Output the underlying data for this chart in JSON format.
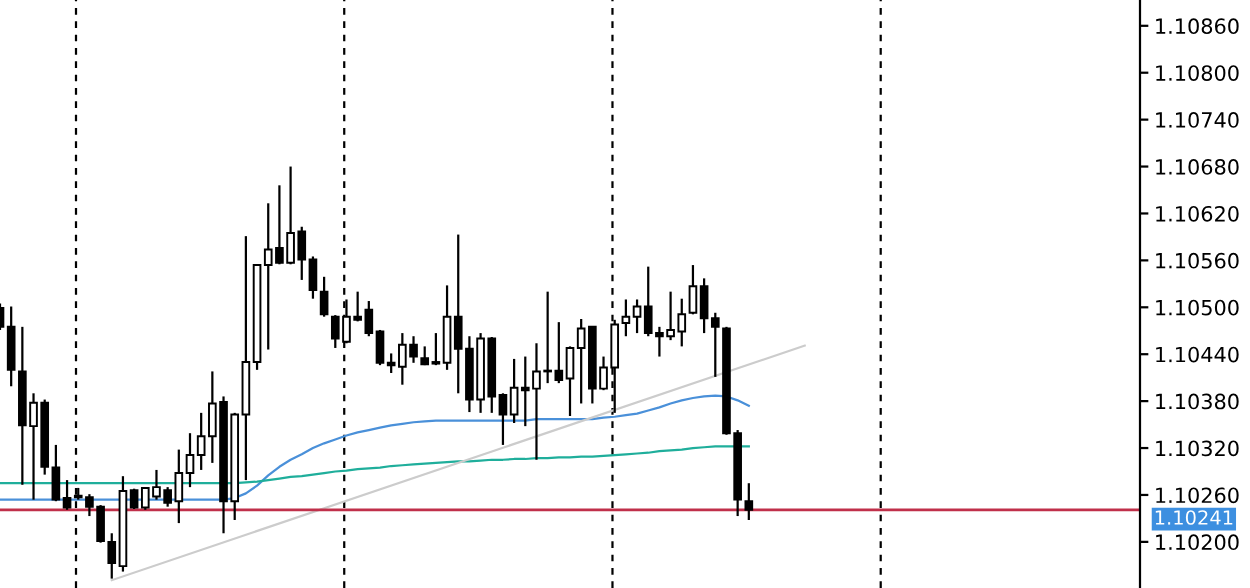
{
  "chart_data": {
    "type": "candlestick",
    "categories": [
      null,
      null,
      null,
      null,
      null,
      null,
      null,
      null,
      null,
      null,
      null,
      null,
      null,
      null,
      null,
      null,
      null,
      null,
      null,
      null,
      null,
      null,
      null,
      null,
      null,
      null,
      null,
      null,
      null,
      null,
      null,
      null,
      null,
      null,
      null,
      null,
      null,
      null,
      null,
      null,
      null,
      null,
      null,
      null,
      null,
      null,
      null,
      null,
      null,
      null,
      null,
      null,
      null,
      null,
      null,
      null,
      null,
      null,
      null,
      null,
      null,
      null,
      null,
      null,
      null,
      null,
      null,
      null,
      null,
      null,
      null,
      null,
      null,
      null,
      null,
      null,
      null,
      null,
      null,
      null,
      null,
      null,
      null,
      null,
      null,
      null,
      null,
      null,
      null,
      null,
      null,
      null,
      null,
      null,
      null,
      null,
      null,
      null,
      null,
      null,
      null,
      null
    ],
    "ohlc": [
      [
        1.10499,
        1.10505,
        1.10471,
        1.10475
      ],
      [
        1.10475,
        1.10501,
        1.10399,
        1.1042
      ],
      [
        1.10418,
        1.10475,
        1.10273,
        1.10349
      ],
      [
        1.10348,
        1.1039,
        1.10254,
        1.10378
      ],
      [
        1.10378,
        1.10382,
        1.10286,
        1.10296
      ],
      [
        1.10295,
        1.10324,
        1.10252,
        1.10254
      ],
      [
        1.10256,
        1.10279,
        1.10241,
        1.10244
      ],
      [
        1.10257,
        1.10269,
        1.10254,
        1.10259
      ],
      [
        1.10257,
        1.10261,
        1.10233,
        1.10245
      ],
      [
        1.10245,
        1.10247,
        1.10199,
        1.10201
      ],
      [
        1.102,
        1.10211,
        1.10153,
        1.10173
      ],
      [
        1.10169,
        1.10284,
        1.10162,
        1.10265
      ],
      [
        1.10266,
        1.10268,
        1.10242,
        1.10244
      ],
      [
        1.10244,
        1.1027,
        1.10241,
        1.10269
      ],
      [
        1.10258,
        1.10292,
        1.10254,
        1.1027
      ],
      [
        1.10266,
        1.1027,
        1.10245,
        1.1025
      ],
      [
        1.10252,
        1.10318,
        1.10224,
        1.10288
      ],
      [
        1.10288,
        1.10339,
        1.1027,
        1.10311
      ],
      [
        1.10311,
        1.10365,
        1.10292,
        1.10335
      ],
      [
        1.10335,
        1.10418,
        1.10301,
        1.10377
      ],
      [
        1.10379,
        1.10386,
        1.10211,
        1.10252
      ],
      [
        1.10252,
        1.10365,
        1.10228,
        1.10363
      ],
      [
        1.10363,
        1.10591,
        1.10279,
        1.1043
      ],
      [
        1.1043,
        1.10554,
        1.1042,
        1.10554
      ],
      [
        1.10554,
        1.10633,
        1.10446,
        1.10574
      ],
      [
        1.10576,
        1.10656,
        1.10555,
        1.10557
      ],
      [
        1.10557,
        1.1068,
        1.10555,
        1.10595
      ],
      [
        1.10597,
        1.10603,
        1.10535,
        1.10561
      ],
      [
        1.10561,
        1.10565,
        1.10511,
        1.10522
      ],
      [
        1.1052,
        1.10539,
        1.10488,
        1.10491
      ],
      [
        1.10488,
        1.1049,
        1.10448,
        1.1046
      ],
      [
        1.10456,
        1.1051,
        1.10454,
        1.10488
      ],
      [
        1.10488,
        1.1052,
        1.10482,
        1.10484
      ],
      [
        1.10497,
        1.10508,
        1.10463,
        1.10467
      ],
      [
        1.10469,
        1.10471,
        1.10426,
        1.10429
      ],
      [
        1.10429,
        1.10441,
        1.10416,
        1.10426
      ],
      [
        1.10424,
        1.10467,
        1.10401,
        1.10452
      ],
      [
        1.10452,
        1.10463,
        1.10429,
        1.10437
      ],
      [
        1.10435,
        1.1045,
        1.10426,
        1.10427
      ],
      [
        1.10428,
        1.10467,
        1.10426,
        1.1043
      ],
      [
        1.10429,
        1.10528,
        1.1042,
        1.10488
      ],
      [
        1.10488,
        1.10593,
        1.1039,
        1.10447
      ],
      [
        1.10447,
        1.10463,
        1.10366,
        1.10382
      ],
      [
        1.10382,
        1.10467,
        1.10365,
        1.1046
      ],
      [
        1.1046,
        1.10462,
        1.10365,
        1.10386
      ],
      [
        1.10388,
        1.1039,
        1.10324,
        1.10363
      ],
      [
        1.10363,
        1.10434,
        1.10352,
        1.10397
      ],
      [
        1.10397,
        1.10437,
        1.10348,
        1.10394
      ],
      [
        1.10396,
        1.10454,
        1.10305,
        1.10418
      ],
      [
        1.10418,
        1.1052,
        1.10403,
        1.10419
      ],
      [
        1.10419,
        1.10481,
        1.10403,
        1.10407
      ],
      [
        1.10409,
        1.1045,
        1.10361,
        1.10448
      ],
      [
        1.10448,
        1.10485,
        1.10377,
        1.10473
      ],
      [
        1.10475,
        1.10475,
        1.10377,
        1.10396
      ],
      [
        1.10396,
        1.10437,
        1.10394,
        1.10423
      ],
      [
        1.10423,
        1.10484,
        1.10365,
        1.10478
      ],
      [
        1.1048,
        1.1051,
        1.10463,
        1.10488
      ],
      [
        1.10488,
        1.1051,
        1.10467,
        1.10501
      ],
      [
        1.10501,
        1.10552,
        1.10463,
        1.10467
      ],
      [
        1.10467,
        1.10475,
        1.10437,
        1.10463
      ],
      [
        1.10463,
        1.1052,
        1.10458,
        1.10471
      ],
      [
        1.10469,
        1.10511,
        1.1045,
        1.10491
      ],
      [
        1.10493,
        1.10554,
        1.10491,
        1.10527
      ],
      [
        1.10527,
        1.10537,
        1.10467,
        1.10486
      ],
      [
        1.10486,
        1.10493,
        1.10411,
        1.10475
      ],
      [
        1.10473,
        1.10475,
        1.10337,
        1.10339
      ],
      [
        1.10339,
        1.10343,
        1.10233,
        1.10254
      ],
      [
        1.10252,
        1.10275,
        1.10228,
        1.10241
      ],
      null,
      null,
      null,
      null,
      null,
      null,
      null,
      null,
      null,
      null,
      null,
      null,
      null,
      null,
      null,
      null,
      null,
      null,
      null,
      null,
      null,
      null,
      null,
      null,
      null,
      null,
      null,
      null,
      null,
      null,
      null,
      null,
      null,
      null
    ],
    "series": [
      {
        "type": "line",
        "color": "#4a90d9",
        "values": [
          1.10254,
          1.10254,
          1.10254,
          1.10254,
          1.10254,
          1.10254,
          1.10254,
          1.10254,
          1.10254,
          1.10254,
          1.10254,
          1.10254,
          1.10254,
          1.10254,
          1.10254,
          1.10254,
          1.10254,
          1.10254,
          1.10254,
          1.10254,
          1.10254,
          1.10256,
          1.10262,
          1.10272,
          1.10285,
          1.10296,
          1.10305,
          1.10312,
          1.1032,
          1.10326,
          1.10331,
          1.10336,
          1.1034,
          1.10343,
          1.10346,
          1.10349,
          1.10351,
          1.10353,
          1.10354,
          1.10355,
          1.10355,
          1.10355,
          1.10355,
          1.10355,
          1.10355,
          1.10355,
          1.10355,
          1.10355,
          1.10357,
          1.10357,
          1.10357,
          1.10357,
          1.10357,
          1.10357,
          1.10359,
          1.1036,
          1.10362,
          1.10364,
          1.10368,
          1.10372,
          1.10377,
          1.10381,
          1.10384,
          1.10386,
          1.10387,
          1.10386,
          1.10381,
          1.10374,
          null,
          null,
          null,
          null,
          null,
          null,
          null,
          null,
          null,
          null,
          null,
          null,
          null,
          null,
          null,
          null,
          null,
          null,
          null,
          null,
          null,
          null,
          null,
          null,
          null,
          null,
          null,
          null,
          null,
          null,
          null,
          null,
          null,
          null
        ]
      },
      {
        "type": "line",
        "color": "#1fae9b",
        "values": [
          1.10275,
          1.10275,
          1.10275,
          1.10275,
          1.10275,
          1.10275,
          1.10275,
          1.10275,
          1.10275,
          1.10275,
          1.10275,
          1.10275,
          1.10275,
          1.10275,
          1.10275,
          1.10275,
          1.10275,
          1.10275,
          1.10275,
          1.10275,
          1.10275,
          1.10275,
          1.10276,
          1.10277,
          1.10279,
          1.10281,
          1.10283,
          1.10284,
          1.10286,
          1.10288,
          1.1029,
          1.10291,
          1.10293,
          1.10294,
          1.10295,
          1.10297,
          1.10298,
          1.10299,
          1.103,
          1.10301,
          1.10302,
          1.10303,
          1.10303,
          1.10304,
          1.10305,
          1.10305,
          1.10306,
          1.10306,
          1.10307,
          1.10307,
          1.10308,
          1.10308,
          1.10309,
          1.10309,
          1.1031,
          1.10311,
          1.10312,
          1.10313,
          1.10314,
          1.10316,
          1.10317,
          1.10318,
          1.1032,
          1.10321,
          1.10322,
          1.10322,
          1.10322,
          1.10322,
          null,
          null,
          null,
          null,
          null,
          null,
          null,
          null,
          null,
          null,
          null,
          null,
          null,
          null,
          null,
          null,
          null,
          null,
          null,
          null,
          null,
          null,
          null,
          null,
          null,
          null,
          null,
          null,
          null,
          null,
          null,
          null,
          null,
          null
        ]
      },
      {
        "type": "line",
        "color": "#cccccc",
        "values": [
          null,
          null,
          null,
          null,
          null,
          null,
          null,
          null,
          null,
          null,
          1.10151,
          null,
          null,
          null,
          null,
          null,
          null,
          null,
          null,
          null,
          null,
          null,
          null,
          null,
          null,
          null,
          null,
          null,
          null,
          null,
          null,
          null,
          null,
          null,
          null,
          null,
          null,
          null,
          null,
          null,
          null,
          null,
          null,
          null,
          null,
          null,
          null,
          null,
          null,
          null,
          null,
          null,
          null,
          null,
          null,
          null,
          null,
          null,
          null,
          null,
          null,
          null,
          null,
          null,
          null,
          null,
          null,
          null,
          null,
          null,
          null,
          null,
          1.10451,
          null,
          null,
          null,
          null,
          null,
          null,
          null,
          null,
          null,
          null,
          null,
          null,
          null,
          null,
          null,
          null,
          null,
          null,
          null,
          null,
          null,
          null,
          null,
          null,
          null,
          null,
          null,
          null,
          null
        ]
      }
    ],
    "ref_lines": [
      {
        "axis": "y",
        "value": 1.10241,
        "label": "1.10241",
        "color": "#c0304a"
      }
    ],
    "ylim": [
      1.10141,
      1.10893
    ],
    "yticks": [
      {
        "value": 1.102,
        "label": "1.10200"
      },
      {
        "value": 1.1026,
        "label": "1.10260"
      },
      {
        "value": 1.1032,
        "label": "1.10320"
      },
      {
        "value": 1.1038,
        "label": "1.10380"
      },
      {
        "value": 1.1044,
        "label": "1.10440"
      },
      {
        "value": 1.105,
        "label": "1.10500"
      },
      {
        "value": 1.1056,
        "label": "1.10560"
      },
      {
        "value": 1.1062,
        "label": "1.10620"
      },
      {
        "value": 1.1068,
        "label": "1.10680"
      },
      {
        "value": 1.1074,
        "label": "1.10740"
      },
      {
        "value": 1.108,
        "label": "1.10800"
      },
      {
        "value": 1.1086,
        "label": "1.10860"
      }
    ],
    "tick_labels": "y"
  }
}
